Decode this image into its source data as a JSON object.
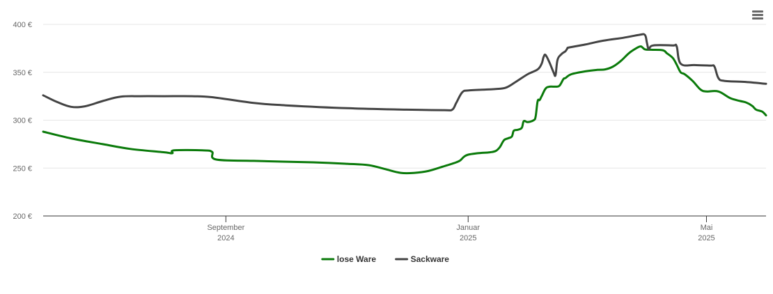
{
  "menu": {
    "icon": "hamburger-menu-icon"
  },
  "chart_data": {
    "type": "line",
    "title": "",
    "xlabel": "",
    "ylabel": "",
    "x_range": [
      "2024-06-01",
      "2025-05-31"
    ],
    "ylim": [
      200,
      400
    ],
    "y_ticks": [
      200,
      250,
      300,
      350,
      400
    ],
    "y_tick_labels": [
      "200 €",
      "250 €",
      "300 €",
      "350 €",
      "400 €"
    ],
    "x_ticks": [
      {
        "date": "2024-09-01",
        "label": "September",
        "sublabel": "2024"
      },
      {
        "date": "2025-01-01",
        "label": "Januar",
        "sublabel": "2025"
      },
      {
        "date": "2025-05-01",
        "label": "Mai",
        "sublabel": "2025"
      }
    ],
    "grid": "horizontal",
    "legend": "bottom-center",
    "series": [
      {
        "name": "lose Ware",
        "color": "#0a7a0a",
        "points": [
          [
            "2024-06-01",
            288
          ],
          [
            "2024-06-15",
            281
          ],
          [
            "2024-07-01",
            275
          ],
          [
            "2024-07-15",
            270
          ],
          [
            "2024-08-01",
            266.5
          ],
          [
            "2024-08-05",
            265.5
          ],
          [
            "2024-08-06",
            268.5
          ],
          [
            "2024-08-20",
            268.5
          ],
          [
            "2024-08-25",
            267
          ],
          [
            "2024-08-27",
            259
          ],
          [
            "2024-09-15",
            257.5
          ],
          [
            "2024-10-15",
            256
          ],
          [
            "2024-11-01",
            254.5
          ],
          [
            "2024-11-12",
            253
          ],
          [
            "2024-11-20",
            249
          ],
          [
            "2024-11-28",
            245
          ],
          [
            "2024-12-05",
            245
          ],
          [
            "2024-12-12",
            247
          ],
          [
            "2024-12-20",
            252
          ],
          [
            "2024-12-26",
            256
          ],
          [
            "2024-12-28",
            258
          ],
          [
            "2024-12-30",
            262
          ],
          [
            "2025-01-01",
            264
          ],
          [
            "2025-01-06",
            265.5
          ],
          [
            "2025-01-12",
            266.5
          ],
          [
            "2025-01-15",
            268
          ],
          [
            "2025-01-17",
            272
          ],
          [
            "2025-01-19",
            279
          ],
          [
            "2025-01-21",
            281
          ],
          [
            "2025-01-23",
            283
          ],
          [
            "2025-01-24",
            289
          ],
          [
            "2025-01-26",
            290
          ],
          [
            "2025-01-28",
            292
          ],
          [
            "2025-01-29",
            299
          ],
          [
            "2025-01-31",
            298
          ],
          [
            "2025-02-03",
            300
          ],
          [
            "2025-02-04",
            304
          ],
          [
            "2025-02-05",
            320
          ],
          [
            "2025-02-06",
            321
          ],
          [
            "2025-02-07",
            325
          ],
          [
            "2025-02-09",
            333
          ],
          [
            "2025-02-11",
            335
          ],
          [
            "2025-02-14",
            335
          ],
          [
            "2025-02-16",
            336
          ],
          [
            "2025-02-18",
            343
          ],
          [
            "2025-02-19",
            344
          ],
          [
            "2025-02-22",
            348
          ],
          [
            "2025-03-01",
            351
          ],
          [
            "2025-03-07",
            352.5
          ],
          [
            "2025-03-11",
            353
          ],
          [
            "2025-03-15",
            356
          ],
          [
            "2025-03-19",
            362
          ],
          [
            "2025-03-23",
            370
          ],
          [
            "2025-03-27",
            375.5
          ],
          [
            "2025-03-29",
            377
          ],
          [
            "2025-03-31",
            374
          ],
          [
            "2025-04-03",
            373.5
          ],
          [
            "2025-04-09",
            373
          ],
          [
            "2025-04-11",
            370
          ],
          [
            "2025-04-14",
            365
          ],
          [
            "2025-04-16",
            358
          ],
          [
            "2025-04-18",
            350
          ],
          [
            "2025-04-20",
            348
          ],
          [
            "2025-04-24",
            341
          ],
          [
            "2025-04-28",
            332
          ],
          [
            "2025-05-01",
            330
          ],
          [
            "2025-05-07",
            330
          ],
          [
            "2025-05-13",
            323
          ],
          [
            "2025-05-18",
            320
          ],
          [
            "2025-05-21",
            318.5
          ],
          [
            "2025-05-24",
            315
          ],
          [
            "2025-05-26",
            311
          ],
          [
            "2025-05-29",
            309
          ],
          [
            "2025-05-31",
            305
          ]
        ]
      },
      {
        "name": "Sackware",
        "color": "#434343",
        "points": [
          [
            "2024-06-01",
            326
          ],
          [
            "2024-06-08",
            319
          ],
          [
            "2024-06-15",
            314
          ],
          [
            "2024-06-22",
            314.5
          ],
          [
            "2024-07-01",
            320
          ],
          [
            "2024-07-10",
            324.5
          ],
          [
            "2024-07-20",
            325
          ],
          [
            "2024-08-01",
            325
          ],
          [
            "2024-08-15",
            325
          ],
          [
            "2024-08-25",
            324
          ],
          [
            "2024-09-15",
            318
          ],
          [
            "2024-10-01",
            315.5
          ],
          [
            "2024-11-01",
            312.5
          ],
          [
            "2024-12-01",
            311
          ],
          [
            "2024-12-20",
            310.5
          ],
          [
            "2024-12-24",
            311
          ],
          [
            "2024-12-26",
            318
          ],
          [
            "2024-12-29",
            329
          ],
          [
            "2025-01-01",
            331
          ],
          [
            "2025-01-10",
            332
          ],
          [
            "2025-01-15",
            332.5
          ],
          [
            "2025-01-20",
            334
          ],
          [
            "2025-01-25",
            340
          ],
          [
            "2025-01-31",
            348
          ],
          [
            "2025-02-05",
            353
          ],
          [
            "2025-02-07",
            359
          ],
          [
            "2025-02-08",
            366
          ],
          [
            "2025-02-09",
            368
          ],
          [
            "2025-02-11",
            360
          ],
          [
            "2025-02-13",
            350
          ],
          [
            "2025-02-14",
            347
          ],
          [
            "2025-02-15",
            363
          ],
          [
            "2025-02-17",
            369
          ],
          [
            "2025-02-19",
            372
          ],
          [
            "2025-02-20",
            375
          ],
          [
            "2025-02-21",
            376
          ],
          [
            "2025-03-01",
            379
          ],
          [
            "2025-03-10",
            383
          ],
          [
            "2025-03-20",
            386
          ],
          [
            "2025-03-28",
            389
          ],
          [
            "2025-03-31",
            389
          ],
          [
            "2025-04-01",
            381
          ],
          [
            "2025-04-02",
            374
          ],
          [
            "2025-04-04",
            378
          ],
          [
            "2025-04-14",
            378
          ],
          [
            "2025-04-16",
            377
          ],
          [
            "2025-04-18",
            359
          ],
          [
            "2025-04-25",
            357.5
          ],
          [
            "2025-05-03",
            357
          ],
          [
            "2025-05-05",
            356
          ],
          [
            "2025-05-07",
            344
          ],
          [
            "2025-05-10",
            341
          ],
          [
            "2025-05-20",
            340
          ],
          [
            "2025-05-31",
            338
          ]
        ]
      }
    ]
  }
}
